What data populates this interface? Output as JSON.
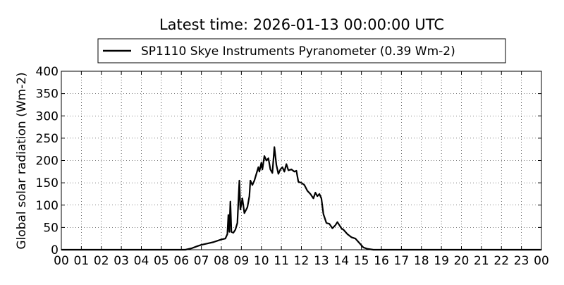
{
  "chart_data": {
    "type": "line",
    "title": "Latest time: 2026-01-13 00:00:00 UTC",
    "y_label": "Global solar radiation (Wm-2)",
    "x": [
      0,
      6.2,
      6.5,
      6.8,
      7.0,
      7.3,
      7.6,
      7.8,
      8.0,
      8.2,
      8.3,
      8.35,
      8.4,
      8.45,
      8.5,
      8.6,
      8.7,
      8.8,
      8.9,
      8.95,
      9.05,
      9.15,
      9.3,
      9.4,
      9.45,
      9.55,
      9.65,
      9.75,
      9.85,
      9.9,
      10.0,
      10.05,
      10.15,
      10.25,
      10.35,
      10.45,
      10.55,
      10.65,
      10.75,
      10.85,
      10.95,
      11.05,
      11.15,
      11.25,
      11.35,
      11.5,
      11.65,
      11.75,
      11.85,
      12.0,
      12.15,
      12.3,
      12.45,
      12.6,
      12.7,
      12.8,
      12.9,
      13.0,
      13.1,
      13.25,
      13.4,
      13.55,
      13.7,
      13.8,
      13.9,
      14.0,
      14.1,
      14.3,
      14.5,
      14.7,
      14.9,
      15.1,
      15.3,
      15.6,
      24
    ],
    "series": [
      {
        "name": "SP1110 Skye Instruments Pyranometer (0.39 Wm-2)",
        "color": "#000000",
        "values": [
          0,
          0,
          3,
          8,
          11,
          14,
          17,
          20,
          23,
          25,
          35,
          78,
          40,
          108,
          40,
          38,
          45,
          60,
          155,
          90,
          115,
          82,
          95,
          120,
          155,
          145,
          155,
          170,
          185,
          175,
          195,
          180,
          210,
          200,
          205,
          180,
          172,
          230,
          190,
          170,
          180,
          185,
          175,
          192,
          178,
          180,
          175,
          177,
          152,
          150,
          145,
          132,
          125,
          115,
          128,
          120,
          125,
          115,
          80,
          60,
          58,
          48,
          55,
          62,
          55,
          48,
          45,
          35,
          28,
          25,
          15,
          5,
          2,
          0,
          0
        ]
      }
    ],
    "xlim": [
      0,
      24
    ],
    "xticks": [
      {
        "value": 0,
        "label": "00"
      },
      {
        "value": 1,
        "label": "01"
      },
      {
        "value": 2,
        "label": "02"
      },
      {
        "value": 3,
        "label": "03"
      },
      {
        "value": 4,
        "label": "04"
      },
      {
        "value": 5,
        "label": "05"
      },
      {
        "value": 6,
        "label": "06"
      },
      {
        "value": 7,
        "label": "07"
      },
      {
        "value": 8,
        "label": "08"
      },
      {
        "value": 9,
        "label": "09"
      },
      10,
      11,
      12,
      13,
      14,
      15,
      16,
      17,
      18,
      19,
      20,
      21,
      22,
      23,
      {
        "value": 24,
        "label": "00"
      }
    ],
    "ylim": [
      0,
      400
    ],
    "yticks": [
      0,
      50,
      100,
      150,
      200,
      250,
      300,
      350,
      400
    ],
    "grid": true,
    "legend": "top"
  }
}
